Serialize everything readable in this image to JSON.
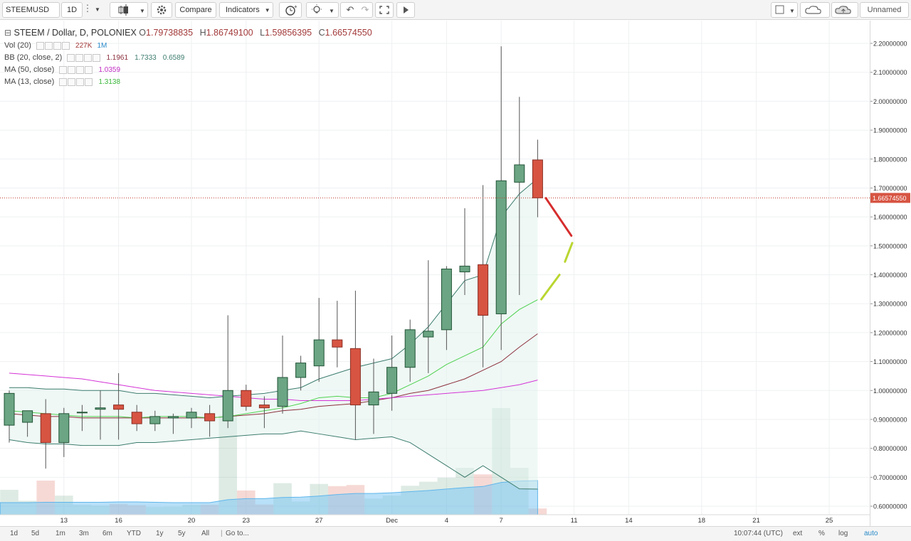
{
  "toolbar": {
    "symbol": "STEEMUSD",
    "interval": "1D",
    "compare_label": "Compare",
    "indicators_label": "Indicators",
    "layout_name": "Unnamed"
  },
  "legend": {
    "title": "STEEM / Dollar, D, POLONIEX",
    "open_label": "O",
    "open": "1.79738835",
    "high_label": "H",
    "high": "1.86749100",
    "low_label": "L",
    "low": "1.59856395",
    "close_label": "C",
    "close": "1.66574550",
    "vol_name": "Vol (20)",
    "vol_value": "227K",
    "vol_ma": "1M",
    "bb_name": "BB (20, close, 2)",
    "bb_mid": "1.1961",
    "bb_upper": "1.7333",
    "bb_lower": "0.6589",
    "ma50_name": "MA (50, close)",
    "ma50_value": "1.0359",
    "ma13_name": "MA (13, close)",
    "ma13_value": "1.3138"
  },
  "colors": {
    "up": "#6ba583",
    "down": "#d75442",
    "ma50": "#d433d6",
    "ma13": "#4fd14f",
    "bb_mid": "#8b2f3c",
    "bb_band": "#3c7c6e",
    "vol_ma": "#7ec6f2",
    "projection_down": "#d62d2d",
    "projection_up": "#b9d630"
  },
  "chart_data": {
    "type": "candlestick",
    "price_axis_ticks": [
      "2.20000000",
      "2.10000000",
      "2.00000000",
      "1.90000000",
      "1.80000000",
      "1.70000000",
      "1.60000000",
      "1.50000000",
      "1.40000000",
      "1.30000000",
      "1.20000000",
      "1.10000000",
      "1.00000000",
      "0.90000000",
      "0.80000000",
      "0.70000000",
      "0.60000000"
    ],
    "price_range": [
      0.57,
      2.25
    ],
    "current_price_label": "1.66574550",
    "time_axis_labels": [
      {
        "label": "13",
        "bar": 3
      },
      {
        "label": "16",
        "bar": 6
      },
      {
        "label": "20",
        "bar": 10
      },
      {
        "label": "23",
        "bar": 13
      },
      {
        "label": "27",
        "bar": 17
      },
      {
        "label": "Dec",
        "bar": 21
      },
      {
        "label": "4",
        "bar": 24
      },
      {
        "label": "7",
        "bar": 27
      },
      {
        "label": "11",
        "bar": 31
      },
      {
        "label": "14",
        "bar": 34
      },
      {
        "label": "18",
        "bar": 38
      },
      {
        "label": "21",
        "bar": 41
      },
      {
        "label": "25",
        "bar": 45
      }
    ],
    "candles": [
      {
        "o": 0.88,
        "h": 1.0,
        "l": 0.82,
        "c": 0.99
      },
      {
        "o": 0.89,
        "h": 0.93,
        "l": 0.84,
        "c": 0.93
      },
      {
        "o": 0.92,
        "h": 0.97,
        "l": 0.73,
        "c": 0.82
      },
      {
        "o": 0.82,
        "h": 0.94,
        "l": 0.77,
        "c": 0.92
      },
      {
        "o": 0.925,
        "h": 0.95,
        "l": 0.86,
        "c": 0.925
      },
      {
        "o": 0.935,
        "h": 1.0,
        "l": 0.83,
        "c": 0.94
      },
      {
        "o": 0.95,
        "h": 1.06,
        "l": 0.83,
        "c": 0.935
      },
      {
        "o": 0.925,
        "h": 0.95,
        "l": 0.86,
        "c": 0.885
      },
      {
        "o": 0.885,
        "h": 0.93,
        "l": 0.86,
        "c": 0.91
      },
      {
        "o": 0.905,
        "h": 0.92,
        "l": 0.85,
        "c": 0.91
      },
      {
        "o": 0.905,
        "h": 0.94,
        "l": 0.87,
        "c": 0.925
      },
      {
        "o": 0.92,
        "h": 0.95,
        "l": 0.84,
        "c": 0.895
      },
      {
        "o": 0.895,
        "h": 1.26,
        "l": 0.87,
        "c": 1.0
      },
      {
        "o": 1.0,
        "h": 1.02,
        "l": 0.93,
        "c": 0.945
      },
      {
        "o": 0.95,
        "h": 0.98,
        "l": 0.87,
        "c": 0.94
      },
      {
        "o": 0.945,
        "h": 1.19,
        "l": 0.92,
        "c": 1.045
      },
      {
        "o": 1.045,
        "h": 1.12,
        "l": 1.0,
        "c": 1.095
      },
      {
        "o": 1.085,
        "h": 1.32,
        "l": 1.03,
        "c": 1.175
      },
      {
        "o": 1.175,
        "h": 1.31,
        "l": 1.08,
        "c": 1.15
      },
      {
        "o": 1.145,
        "h": 1.345,
        "l": 0.83,
        "c": 0.95
      },
      {
        "o": 0.95,
        "h": 1.11,
        "l": 0.85,
        "c": 0.995
      },
      {
        "o": 0.99,
        "h": 1.19,
        "l": 0.93,
        "c": 1.08
      },
      {
        "o": 1.08,
        "h": 1.245,
        "l": 1.03,
        "c": 1.21
      },
      {
        "o": 1.185,
        "h": 1.45,
        "l": 1.06,
        "c": 1.205
      },
      {
        "o": 1.21,
        "h": 1.43,
        "l": 1.14,
        "c": 1.42
      },
      {
        "o": 1.41,
        "h": 1.63,
        "l": 1.33,
        "c": 1.43
      },
      {
        "o": 1.435,
        "h": 1.71,
        "l": 1.08,
        "c": 1.26
      },
      {
        "o": 1.265,
        "h": 2.19,
        "l": 1.14,
        "c": 1.725
      },
      {
        "o": 1.72,
        "h": 2.015,
        "l": 1.33,
        "c": 1.78
      },
      {
        "o": 1.797,
        "h": 1.867,
        "l": 1.599,
        "c": 1.666
      }
    ],
    "volume_bars": [
      68,
      38,
      93,
      52,
      27,
      25,
      29,
      26,
      21,
      22,
      27,
      27,
      272,
      66,
      28,
      86,
      36,
      84,
      78,
      81,
      44,
      52,
      79,
      90,
      101,
      128,
      110,
      291,
      128,
      17
    ],
    "volume_ma": [
      33,
      33,
      34,
      34,
      34,
      34,
      35,
      35,
      34,
      33,
      33,
      33,
      41,
      44,
      44,
      47,
      48,
      51,
      55,
      58,
      58,
      60,
      63,
      66,
      70,
      74,
      77,
      88,
      92,
      93
    ],
    "ma50": [
      1.06,
      1.055,
      1.05,
      1.045,
      1.04,
      1.03,
      1.02,
      1.01,
      1.0,
      0.995,
      0.99,
      0.985,
      0.98,
      0.975,
      0.97,
      0.97,
      0.965,
      0.965,
      0.965,
      0.965,
      0.97,
      0.975,
      0.98,
      0.985,
      0.99,
      0.995,
      1.0,
      1.01,
      1.02,
      1.036
    ],
    "ma13": [
      0.93,
      0.925,
      0.92,
      0.915,
      0.91,
      0.91,
      0.91,
      0.905,
      0.91,
      0.91,
      0.91,
      0.905,
      0.91,
      0.92,
      0.93,
      0.94,
      0.955,
      0.975,
      0.98,
      0.975,
      0.975,
      0.99,
      1.02,
      1.05,
      1.09,
      1.12,
      1.15,
      1.23,
      1.28,
      1.314
    ],
    "bb_mid": [
      0.92,
      0.915,
      0.91,
      0.91,
      0.905,
      0.905,
      0.905,
      0.905,
      0.905,
      0.905,
      0.905,
      0.905,
      0.91,
      0.915,
      0.92,
      0.93,
      0.935,
      0.945,
      0.95,
      0.955,
      0.965,
      0.975,
      0.99,
      1.0,
      1.02,
      1.04,
      1.07,
      1.1,
      1.15,
      1.196
    ],
    "bb_upper": [
      1.01,
      1.01,
      1.005,
      1.005,
      1.0,
      1.0,
      1.0,
      0.99,
      0.99,
      0.985,
      0.98,
      0.975,
      0.98,
      0.985,
      0.99,
      1.0,
      1.01,
      1.04,
      1.06,
      1.08,
      1.095,
      1.11,
      1.16,
      1.22,
      1.3,
      1.38,
      1.4,
      1.6,
      1.68,
      1.733
    ],
    "bb_lower": [
      0.83,
      0.82,
      0.815,
      0.815,
      0.81,
      0.81,
      0.81,
      0.82,
      0.82,
      0.825,
      0.83,
      0.835,
      0.84,
      0.845,
      0.85,
      0.85,
      0.86,
      0.85,
      0.84,
      0.83,
      0.835,
      0.84,
      0.82,
      0.78,
      0.74,
      0.7,
      0.74,
      0.7,
      0.66,
      0.659
    ],
    "projection": {
      "down": [
        [
          29.45,
          1.665
        ],
        [
          30.85,
          1.535
        ]
      ],
      "up1": [
        [
          29.2,
          1.315
        ],
        [
          30.2,
          1.4
        ]
      ],
      "up2": [
        [
          30.5,
          1.445
        ],
        [
          30.9,
          1.51
        ]
      ]
    }
  },
  "bottom_bar": {
    "ranges": [
      "1d",
      "5d",
      "1m",
      "3m",
      "6m",
      "YTD",
      "1y",
      "5y",
      "All"
    ],
    "goto": "Go to...",
    "time": "10:07:44 (UTC)",
    "opt_ext": "ext",
    "opt_pct": "%",
    "opt_log": "log",
    "opt_auto": "auto"
  }
}
